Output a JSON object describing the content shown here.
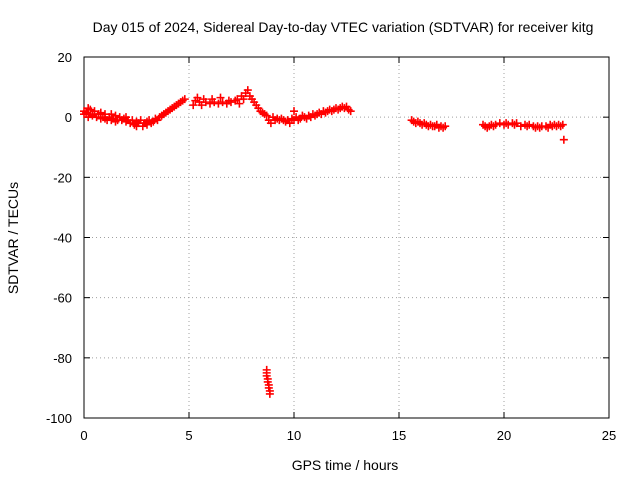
{
  "chart_data": {
    "type": "scatter",
    "title": "Day 015 of 2024, Sidereal Day-to-day VTEC variation (SDTVAR) for receiver kitg",
    "xlabel": "GPS time / hours",
    "ylabel": "SDTVAR / TECUs",
    "xlim": [
      0,
      25
    ],
    "ylim": [
      -100,
      20
    ],
    "xticks": [
      0,
      5,
      10,
      15,
      20,
      25
    ],
    "yticks": [
      -100,
      -80,
      -60,
      -40,
      -20,
      0,
      20
    ],
    "xtick_labels": [
      "0",
      "5",
      "10",
      "15",
      "20",
      "25"
    ],
    "ytick_labels": [
      "-100",
      "-80",
      "-60",
      "-40",
      "-20",
      "0",
      "20"
    ],
    "grid": true,
    "marker": "plus",
    "color": "#ff0000",
    "series": [
      {
        "name": "SDTVAR",
        "points": [
          [
            0.0,
            2
          ],
          [
            0.0,
            1
          ],
          [
            0.1,
            1.5
          ],
          [
            0.2,
            0
          ],
          [
            0.2,
            3
          ],
          [
            0.3,
            1
          ],
          [
            0.3,
            2.5
          ],
          [
            0.4,
            0.5
          ],
          [
            0.5,
            1
          ],
          [
            0.5,
            2
          ],
          [
            0.6,
            0
          ],
          [
            0.7,
            1
          ],
          [
            0.8,
            -0.5
          ],
          [
            0.8,
            1.5
          ],
          [
            0.9,
            0
          ],
          [
            1.0,
            -0.5
          ],
          [
            1.0,
            1
          ],
          [
            1.1,
            -1
          ],
          [
            1.2,
            0
          ],
          [
            1.3,
            -1
          ],
          [
            1.3,
            1
          ],
          [
            1.4,
            -0.5
          ],
          [
            1.5,
            -1.5
          ],
          [
            1.5,
            0.5
          ],
          [
            1.6,
            -1
          ],
          [
            1.7,
            0
          ],
          [
            1.8,
            -1
          ],
          [
            1.9,
            -0.5
          ],
          [
            2.0,
            -1.5
          ],
          [
            2.0,
            0
          ],
          [
            2.1,
            -1
          ],
          [
            2.2,
            -2
          ],
          [
            2.3,
            -1
          ],
          [
            2.4,
            -2.5
          ],
          [
            2.5,
            -1.5
          ],
          [
            2.5,
            -3
          ],
          [
            2.6,
            -2
          ],
          [
            2.7,
            -1
          ],
          [
            2.8,
            -3
          ],
          [
            2.9,
            -2
          ],
          [
            3.0,
            -1.5
          ],
          [
            3.0,
            -2.5
          ],
          [
            3.1,
            -1
          ],
          [
            3.2,
            -2
          ],
          [
            3.3,
            -1.5
          ],
          [
            3.4,
            -0.5
          ],
          [
            3.5,
            -1
          ],
          [
            3.6,
            0
          ],
          [
            3.7,
            0.5
          ],
          [
            3.8,
            1
          ],
          [
            3.9,
            1.5
          ],
          [
            4.0,
            2
          ],
          [
            4.1,
            2.5
          ],
          [
            4.2,
            3
          ],
          [
            4.3,
            3.5
          ],
          [
            4.4,
            4
          ],
          [
            4.5,
            4.5
          ],
          [
            4.6,
            5
          ],
          [
            4.7,
            5.5
          ],
          [
            4.8,
            6
          ],
          [
            5.2,
            4
          ],
          [
            5.3,
            5.5
          ],
          [
            5.4,
            6.5
          ],
          [
            5.5,
            5
          ],
          [
            5.6,
            4
          ],
          [
            5.7,
            6
          ],
          [
            5.8,
            5
          ],
          [
            6.0,
            4.5
          ],
          [
            6.1,
            6
          ],
          [
            6.2,
            5
          ],
          [
            6.4,
            4.5
          ],
          [
            6.5,
            6.5
          ],
          [
            6.6,
            5
          ],
          [
            6.8,
            4.5
          ],
          [
            6.9,
            5.5
          ],
          [
            7.0,
            5
          ],
          [
            7.2,
            5.5
          ],
          [
            7.3,
            6
          ],
          [
            7.4,
            4.5
          ],
          [
            7.5,
            7
          ],
          [
            7.6,
            6
          ],
          [
            7.7,
            8
          ],
          [
            7.8,
            9
          ],
          [
            7.9,
            7
          ],
          [
            8.0,
            6
          ],
          [
            8.1,
            5
          ],
          [
            8.2,
            4
          ],
          [
            8.3,
            3
          ],
          [
            8.4,
            2
          ],
          [
            8.5,
            1.5
          ],
          [
            8.6,
            1
          ],
          [
            8.7,
            0.5
          ],
          [
            8.8,
            -1
          ],
          [
            8.9,
            -2
          ],
          [
            9.0,
            0
          ],
          [
            9.1,
            -1
          ],
          [
            9.2,
            -0.5
          ],
          [
            9.3,
            -1
          ],
          [
            9.4,
            -0.5
          ],
          [
            9.5,
            -1
          ],
          [
            9.6,
            -1.5
          ],
          [
            9.7,
            -1
          ],
          [
            9.8,
            -2
          ],
          [
            9.9,
            -0.5
          ],
          [
            10.0,
            2
          ],
          [
            10.0,
            -1
          ],
          [
            10.1,
            0
          ],
          [
            10.2,
            -1
          ],
          [
            10.3,
            -0.5
          ],
          [
            10.4,
            0.5
          ],
          [
            10.5,
            0
          ],
          [
            10.6,
            -0.5
          ],
          [
            10.7,
            0.5
          ],
          [
            10.8,
            0
          ],
          [
            10.9,
            1
          ],
          [
            11.0,
            0.5
          ],
          [
            11.1,
            1
          ],
          [
            11.2,
            1.5
          ],
          [
            11.3,
            1
          ],
          [
            11.4,
            2
          ],
          [
            11.5,
            1.5
          ],
          [
            11.6,
            2
          ],
          [
            11.7,
            2.5
          ],
          [
            11.8,
            2
          ],
          [
            11.9,
            2.5
          ],
          [
            12.0,
            3
          ],
          [
            12.1,
            2.5
          ],
          [
            12.2,
            3
          ],
          [
            12.3,
            3.5
          ],
          [
            12.4,
            3
          ],
          [
            12.5,
            3.5
          ],
          [
            12.6,
            2.5
          ],
          [
            12.7,
            2
          ],
          [
            8.7,
            -84
          ],
          [
            8.7,
            -85
          ],
          [
            8.7,
            -86
          ],
          [
            8.75,
            -87
          ],
          [
            8.75,
            -88
          ],
          [
            8.8,
            -89
          ],
          [
            8.8,
            -90
          ],
          [
            8.85,
            -91
          ],
          [
            8.85,
            -92
          ],
          [
            15.6,
            -1
          ],
          [
            15.7,
            -1.5
          ],
          [
            15.8,
            -2
          ],
          [
            15.9,
            -1.5
          ],
          [
            16.0,
            -2
          ],
          [
            16.1,
            -2.5
          ],
          [
            16.2,
            -2
          ],
          [
            16.3,
            -2.5
          ],
          [
            16.4,
            -3
          ],
          [
            16.5,
            -2.5
          ],
          [
            16.6,
            -3
          ],
          [
            16.7,
            -3
          ],
          [
            16.8,
            -2.5
          ],
          [
            16.9,
            -3.5
          ],
          [
            17.0,
            -3
          ],
          [
            17.1,
            -3.5
          ],
          [
            17.2,
            -3
          ],
          [
            19.0,
            -2.5
          ],
          [
            19.1,
            -3
          ],
          [
            19.2,
            -3.5
          ],
          [
            19.3,
            -3
          ],
          [
            19.4,
            -2.5
          ],
          [
            19.5,
            -3
          ],
          [
            19.6,
            -2.5
          ],
          [
            19.8,
            -2
          ],
          [
            20.0,
            -2.5
          ],
          [
            20.1,
            -2
          ],
          [
            20.2,
            -2.5
          ],
          [
            20.4,
            -2
          ],
          [
            20.5,
            -2.5
          ],
          [
            20.6,
            -2
          ],
          [
            20.8,
            -3
          ],
          [
            21.0,
            -2.5
          ],
          [
            21.1,
            -3
          ],
          [
            21.2,
            -2.5
          ],
          [
            21.4,
            -3
          ],
          [
            21.5,
            -3.5
          ],
          [
            21.6,
            -3
          ],
          [
            21.7,
            -3.5
          ],
          [
            21.8,
            -3
          ],
          [
            22.0,
            -3
          ],
          [
            22.1,
            -3.5
          ],
          [
            22.2,
            -2.5
          ],
          [
            22.3,
            -3
          ],
          [
            22.4,
            -2.5
          ],
          [
            22.5,
            -3
          ],
          [
            22.6,
            -2.5
          ],
          [
            22.7,
            -3
          ],
          [
            22.8,
            -2.5
          ],
          [
            22.85,
            -7.5
          ]
        ]
      }
    ]
  }
}
